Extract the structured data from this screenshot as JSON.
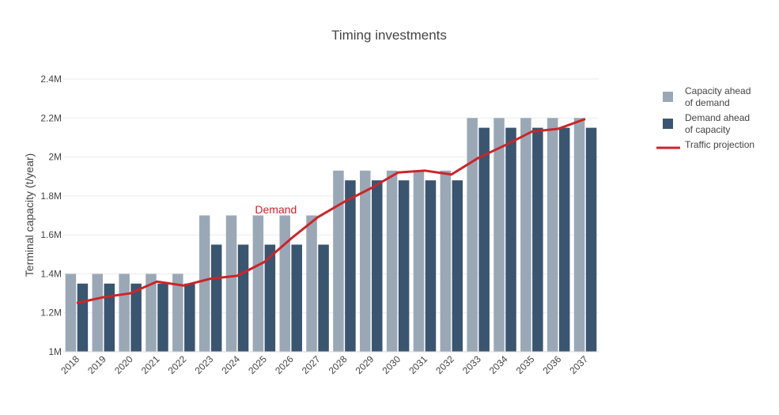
{
  "chart_data": {
    "type": "bar",
    "title": "Timing investments",
    "xlabel": "",
    "ylabel": "Terminal capacity (t/year)",
    "ylim": [
      1000000,
      2400000
    ],
    "yticks": [
      1000000,
      1200000,
      1400000,
      1600000,
      1800000,
      2000000,
      2200000,
      2400000
    ],
    "ytick_labels": [
      "1M",
      "1.2M",
      "1.4M",
      "1.6M",
      "1.8M",
      "2M",
      "2.2M",
      "2.4M"
    ],
    "grid": true,
    "legend_position": "top-right",
    "categories": [
      "2018",
      "2019",
      "2020",
      "2021",
      "2022",
      "2023",
      "2024",
      "2025",
      "2026",
      "2027",
      "2028",
      "2029",
      "2030",
      "2031",
      "2032",
      "2033",
      "2034",
      "2035",
      "2036",
      "2037"
    ],
    "series": [
      {
        "name": "Capacity ahead of demand",
        "legend_lines": [
          "Capacity ahead",
          "of demand"
        ],
        "type": "bar",
        "color": "#9aa8b6",
        "values": [
          1400000,
          1400000,
          1400000,
          1400000,
          1400000,
          1700000,
          1700000,
          1700000,
          1700000,
          1700000,
          1930000,
          1930000,
          1930000,
          1930000,
          1930000,
          2200000,
          2200000,
          2200000,
          2200000,
          2200000
        ]
      },
      {
        "name": "Demand ahead of capacity",
        "legend_lines": [
          "Demand ahead",
          "of capacity"
        ],
        "type": "bar",
        "color": "#3a556f",
        "values": [
          1350000,
          1350000,
          1350000,
          1350000,
          1350000,
          1550000,
          1550000,
          1550000,
          1550000,
          1550000,
          1880000,
          1880000,
          1880000,
          1880000,
          1880000,
          2150000,
          2150000,
          2150000,
          2150000,
          2150000
        ]
      },
      {
        "name": "Traffic projection",
        "legend_lines": [
          "Traffic projection"
        ],
        "type": "line",
        "color": "#cc2529",
        "values": [
          1250000,
          1280000,
          1300000,
          1360000,
          1340000,
          1375000,
          1390000,
          1460000,
          1580000,
          1690000,
          1770000,
          1840000,
          1920000,
          1930000,
          1910000,
          1995000,
          2060000,
          2130000,
          2145000,
          2195000
        ]
      }
    ],
    "annotations": [
      {
        "text": "Demand",
        "x": "2025",
        "y": 1730000,
        "color": "#cc2529"
      }
    ]
  }
}
